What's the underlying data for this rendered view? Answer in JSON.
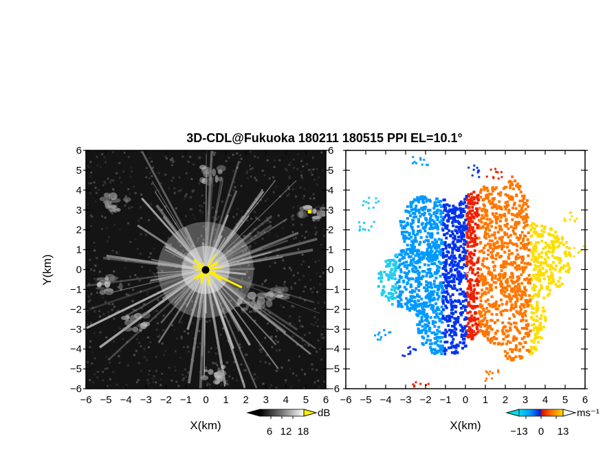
{
  "title": "3D-CDL@Fukuoka 180211 180515 PPI EL=10.1°",
  "chart_data": [
    {
      "type": "heatmap",
      "panel": "left",
      "quantity": "reflectivity / SNR",
      "xlabel": "X(km)",
      "ylabel": "Y(km)",
      "xlim": [
        -6,
        6
      ],
      "ylim": [
        -6,
        6
      ],
      "xticks": [
        "−6",
        "−5",
        "−4",
        "−3",
        "−2",
        "−1",
        "0",
        "1",
        "2",
        "3",
        "4",
        "5",
        "6"
      ],
      "yticks": [
        "6",
        "5",
        "4",
        "3",
        "2",
        "1",
        "0",
        "−1",
        "−2",
        "−3",
        "−4",
        "−5",
        "−6"
      ],
      "colormap": "grayscale",
      "colorbar": {
        "unit": "dB",
        "ticks": [
          "6",
          "12",
          "18"
        ],
        "range": [
          0,
          24
        ]
      },
      "colors": {
        "background": "#141414",
        "bright": "#f0f0f0",
        "saturated": "#ffee00",
        "center": "#000000"
      }
    },
    {
      "type": "heatmap",
      "panel": "right",
      "quantity": "Doppler radial velocity",
      "xlabel": "X(km)",
      "xlim": [
        -6,
        6
      ],
      "ylim": [
        -6,
        6
      ],
      "xticks": [
        "−6",
        "−5",
        "−4",
        "−3",
        "−2",
        "−1",
        "0",
        "1",
        "2",
        "3",
        "4",
        "5",
        "6"
      ],
      "yticks": [
        "6",
        "5",
        "4",
        "3",
        "2",
        "1",
        "0",
        "−1",
        "−2",
        "−3",
        "−4",
        "−5",
        "−6"
      ],
      "colormap": "cyan-blue-red-yellow diverging",
      "colorbar": {
        "unit": "ms⁻¹",
        "ticks": [
          "−13",
          "0",
          "13"
        ],
        "range": [
          -19.5,
          19.5
        ]
      },
      "colors": {
        "cyan": "#22ccee",
        "blue": "#0033ee",
        "red": "#ee2200",
        "orange": "#ff7700",
        "yellow": "#ffdd00"
      }
    }
  ]
}
